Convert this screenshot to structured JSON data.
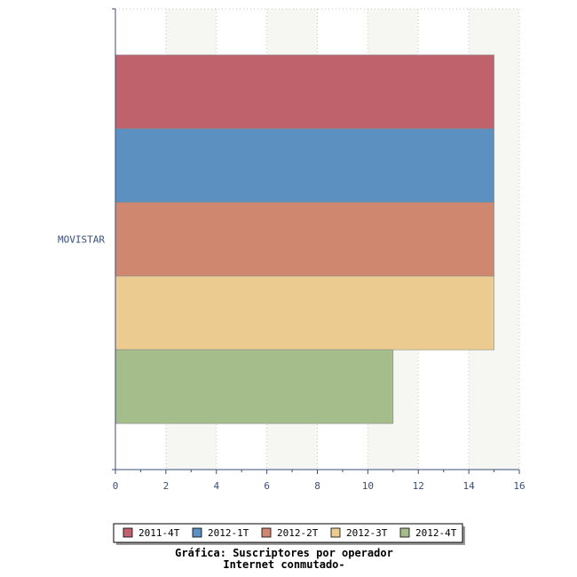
{
  "chart_data": {
    "type": "bar",
    "orientation": "horizontal",
    "categories": [
      "MOVISTAR"
    ],
    "series": [
      {
        "name": "2011-4T",
        "values": [
          15
        ],
        "color": "#c0626b"
      },
      {
        "name": "2012-1T",
        "values": [
          15
        ],
        "color": "#5b90c0"
      },
      {
        "name": "2012-2T",
        "values": [
          15
        ],
        "color": "#d0876f"
      },
      {
        "name": "2012-3T",
        "values": [
          15
        ],
        "color": "#ebcb8f"
      },
      {
        "name": "2012-4T",
        "values": [
          11
        ],
        "color": "#a5bd8b"
      }
    ],
    "xlim": [
      0,
      16
    ],
    "xticks": [
      0,
      2,
      4,
      6,
      8,
      10,
      12,
      14,
      16
    ],
    "grid": true,
    "legend_position": "bottom",
    "title": "Gráfica: Suscriptores por operador",
    "subtitle": "Internet conmutado-"
  }
}
